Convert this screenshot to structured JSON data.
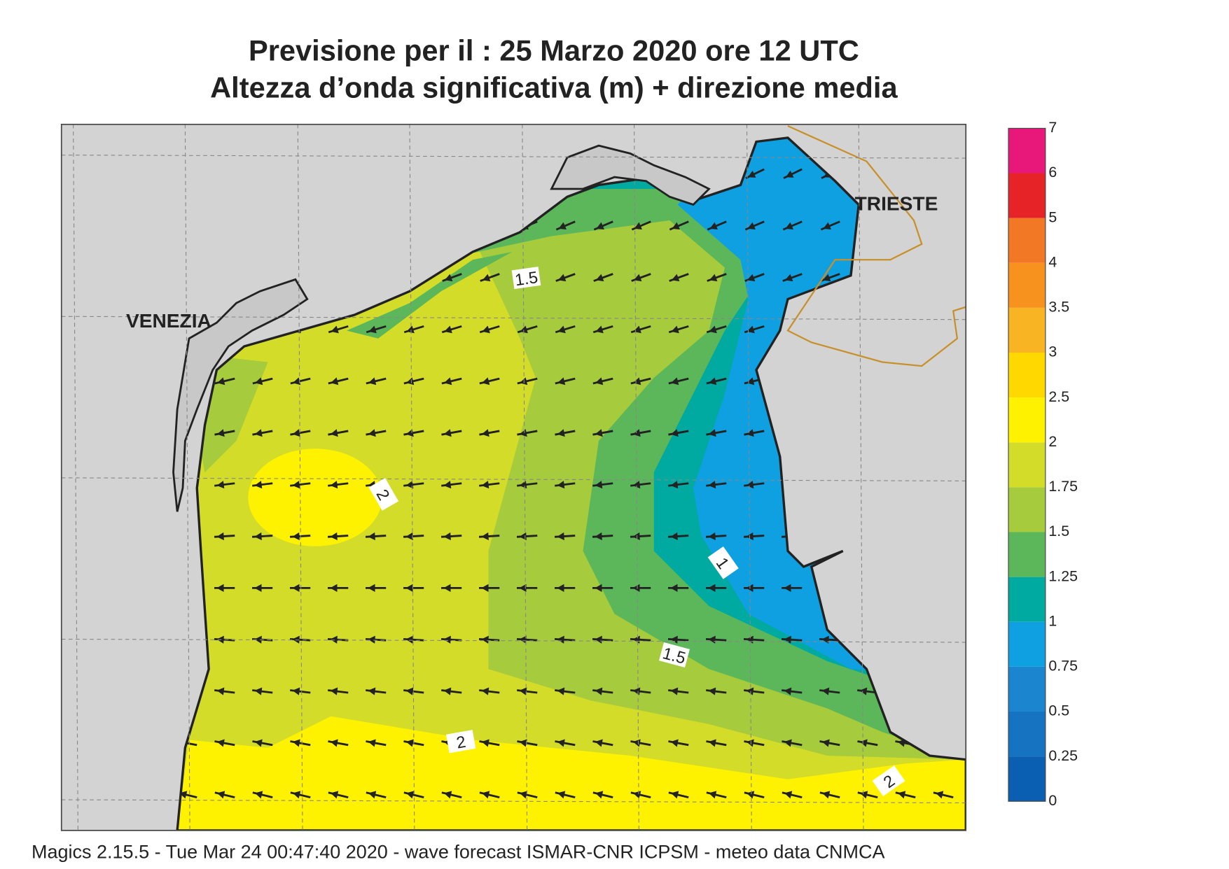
{
  "header": {
    "title": "Previsione per il  :  25   Marzo   2020   ore 12 UTC",
    "subtitle": "Altezza d’onda significativa (m) + direzione media"
  },
  "places": [
    {
      "label": "VENEZIA"
    },
    {
      "label": "TRIESTE"
    }
  ],
  "contour_labels": [
    1.5,
    2,
    1,
    1.5,
    2,
    2
  ],
  "legend": {
    "levels": [
      0,
      0.25,
      0.5,
      0.75,
      1,
      1.25,
      1.5,
      1.75,
      2,
      2.5,
      3,
      3.5,
      4,
      5,
      6,
      7
    ],
    "colors": [
      "#0b5fb2",
      "#1673c2",
      "#1b86cf",
      "#0ea0e0",
      "#00aaa0",
      "#5cb75a",
      "#a6cb3c",
      "#d3dc28",
      "#fff200",
      "#ffd800",
      "#f8b422",
      "#f8921e",
      "#f27826",
      "#e62428",
      "#e8177a"
    ]
  },
  "footer": "Magics 2.15.5 - Tue Mar 24 00:47:40 2020 - wave forecast  ISMAR-CNR  ICPSM - meteo data   CNMCA"
}
